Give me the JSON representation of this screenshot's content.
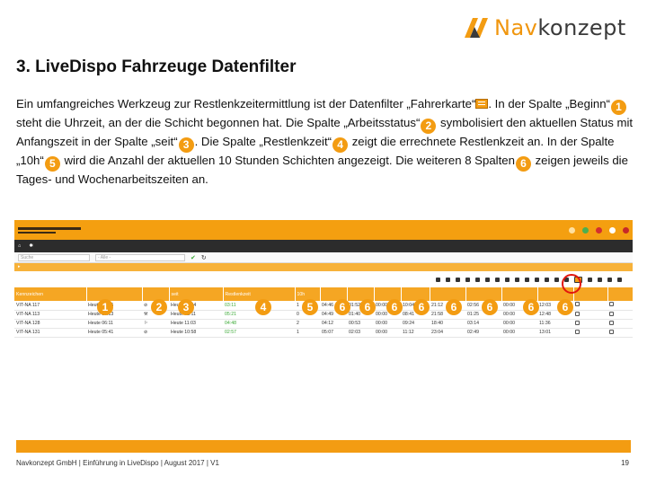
{
  "logo": {
    "part1": "Nav",
    "part2": "konzept"
  },
  "slide": {
    "title": "3. LiveDispo Fahrzeuge Datenfilter",
    "para": {
      "t1": "Ein umfangreiches Werkzeug zur Restlenkzeitermittlung ist der Datenfilter „Fahrerkarte“",
      "t2": ". In der Spalte „Beginn“",
      "m1": "1",
      "t3": " steht die Uhrzeit, an der die Schicht begonnen hat. Die Spalte „Arbeitsstatus“",
      "m2": "2",
      "t4": " symbolisiert den aktuellen Status mit Anfangszeit in der Spalte „seit“",
      "m3": "3",
      "t5": ". Die Spalte „Restlenkzeit“",
      "m4": "4",
      "t6": " zeigt die errechnete Restlenkzeit an. In der Spalte „10h“",
      "m5": "5",
      "t7": " wird die Anzahl der aktuellen 10 Stunden Schichten angezeigt. Die weiteren 8 Spalten",
      "m6": "6",
      "t8": " zeigen jeweils die Tages- und Wochenarbeitszeiten an."
    }
  },
  "app": {
    "filter_placeholder": "Suche",
    "filter_select": "- Alle -",
    "columns": [
      "Kennzeichen",
      "",
      "",
      "seit",
      "Restlenkzeit",
      "10h",
      "",
      "",
      "",
      "",
      "",
      "",
      "",
      "",
      "",
      ""
    ],
    "rows": [
      {
        "plate": "VIT-NA 117",
        "beginn": "Heute 06:46",
        "status": "⊘",
        "seit": "Heute 12:04",
        "rest": "03:11",
        "tenh": "1",
        "c": [
          "04:46",
          "01:52",
          "00:00",
          "10:04",
          "21:12",
          "02:56",
          "00:00",
          "12:03"
        ]
      },
      {
        "plate": "VIT-NA 113",
        "beginn": "Heute 05:13",
        "status": "⚒",
        "seit": "Heute 12:11",
        "rest": "05:21",
        "tenh": "0",
        "c": [
          "04:49",
          "01:40",
          "00:00",
          "08:41",
          "21:58",
          "01:25",
          "00:00",
          "12:48"
        ]
      },
      {
        "plate": "VIT-NA 128",
        "beginn": "Heute 06:11",
        "status": "⚐",
        "seit": "Heute 11:03",
        "rest": "04:48",
        "tenh": "2",
        "c": [
          "04:12",
          "00:53",
          "00:00",
          "09:24",
          "18:40",
          "03:14",
          "00:00",
          "11:36"
        ]
      },
      {
        "plate": "VIT-NA 131",
        "beginn": "Heute 05:41",
        "status": "⊘",
        "seit": "Heute 10:58",
        "rest": "02:57",
        "tenh": "1",
        "c": [
          "05:07",
          "02:03",
          "00:00",
          "11:12",
          "23:04",
          "02:49",
          "00:00",
          "13:01"
        ]
      }
    ],
    "badges": [
      "1",
      "2",
      "3",
      "4",
      "5",
      "6",
      "6",
      "6",
      "6",
      "6",
      "6",
      "6",
      "6"
    ]
  },
  "footer": {
    "text": "Navkonzept GmbH  |  Einführung in LiveDispo  |  August 2017 | V1",
    "page": "19"
  },
  "colors": {
    "accent": "#f39c12",
    "dark": "#2c2c2c",
    "highlight_ring": "#e2150d"
  }
}
